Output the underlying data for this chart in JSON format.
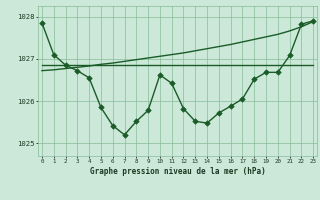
{
  "title": "Graphe pression niveau de la mer (hPa)",
  "bg_color": "#cce8d8",
  "grid_color": "#88bb99",
  "line_color": "#1a5c28",
  "x_hours": [
    0,
    1,
    2,
    3,
    4,
    5,
    6,
    7,
    8,
    9,
    10,
    11,
    12,
    13,
    14,
    15,
    16,
    17,
    18,
    19,
    20,
    21,
    22,
    23
  ],
  "pressure_curve": [
    1027.85,
    1027.1,
    1026.85,
    1026.72,
    1026.55,
    1025.85,
    1025.42,
    1025.2,
    1025.52,
    1025.78,
    1026.62,
    1026.42,
    1025.82,
    1025.52,
    1025.48,
    1025.72,
    1025.88,
    1026.05,
    1026.52,
    1026.68,
    1026.68,
    1027.08,
    1027.82,
    1027.9
  ],
  "trend_flat": [
    1026.85,
    1026.85,
    1026.85,
    1026.85,
    1026.85,
    1026.85,
    1026.85,
    1026.85,
    1026.85,
    1026.85,
    1026.85,
    1026.85,
    1026.85,
    1026.85,
    1026.85,
    1026.85,
    1026.85,
    1026.85,
    1026.85,
    1026.85,
    1026.85,
    1026.85,
    1026.85,
    1026.85
  ],
  "trend_up": [
    1026.72,
    1026.74,
    1026.77,
    1026.8,
    1026.83,
    1026.87,
    1026.9,
    1026.94,
    1026.98,
    1027.02,
    1027.06,
    1027.1,
    1027.14,
    1027.19,
    1027.24,
    1027.29,
    1027.34,
    1027.4,
    1027.46,
    1027.52,
    1027.58,
    1027.66,
    1027.76,
    1027.88
  ],
  "ylim_min": 1024.7,
  "ylim_max": 1028.25,
  "yticks": [
    1025,
    1026,
    1027,
    1028
  ],
  "marker_size": 2.8,
  "line_width": 1.0
}
